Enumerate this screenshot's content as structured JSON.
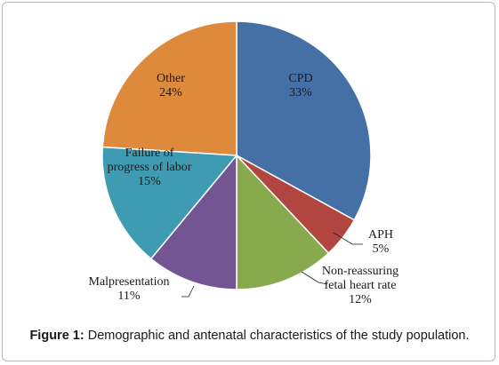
{
  "chart_data": {
    "type": "pie",
    "title": "",
    "slices": [
      {
        "label": "CPD",
        "value": 33,
        "pct_text": "33%",
        "color": "#4570a6"
      },
      {
        "label": "APH",
        "value": 5,
        "pct_text": "5%",
        "color": "#b0463f"
      },
      {
        "label": "Non-reassuring fetal heart rate",
        "label_lines": [
          "Non-reassuring",
          "fetal heart rate"
        ],
        "value": 12,
        "pct_text": "12%",
        "color": "#89a94d"
      },
      {
        "label": "Malpresentation",
        "value": 11,
        "pct_text": "11%",
        "color": "#735593"
      },
      {
        "label": "Failure of progress of labor",
        "label_lines": [
          "Failure of",
          "progress of labor"
        ],
        "value": 15,
        "pct_text": "15%",
        "color": "#3f9bb1"
      },
      {
        "label": "Other",
        "value": 24,
        "pct_text": "24%",
        "color": "#de8a3d"
      }
    ]
  },
  "caption": {
    "prefix": "Figure 1:",
    "text": " Demographic and antenatal characteristics of the study population."
  }
}
